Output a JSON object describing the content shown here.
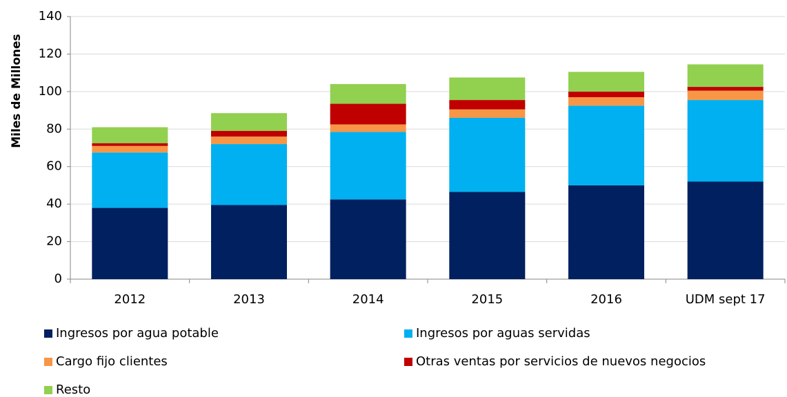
{
  "chart_data": {
    "type": "stacked_bar",
    "y_label": "Miles de Millones",
    "categories": [
      "2012",
      "2013",
      "2014",
      "2015",
      "2016",
      "UDM sept 17"
    ],
    "series": [
      {
        "name": "Ingresos por agua potable",
        "color": "#002060",
        "values": [
          38,
          39.5,
          42.5,
          46.5,
          50,
          52
        ]
      },
      {
        "name": "Ingresos por aguas servidas",
        "color": "#00b0f0",
        "values": [
          29.5,
          32.5,
          36,
          39.5,
          42.5,
          43.5
        ]
      },
      {
        "name": "Cargo fijo clientes",
        "color": "#f79646",
        "values": [
          3.5,
          4,
          4,
          4.5,
          4.5,
          5
        ]
      },
      {
        "name": "Otras ventas por servicios de nuevos negocios",
        "color": "#c00000",
        "values": [
          1.5,
          3,
          11,
          5,
          3,
          2
        ]
      },
      {
        "name": "Resto",
        "color": "#92d050",
        "values": [
          8.5,
          9.5,
          10.5,
          12,
          10.5,
          12
        ]
      }
    ],
    "ylim": [
      0,
      140
    ],
    "yticks": [
      0,
      20,
      40,
      60,
      80,
      100,
      120,
      140
    ],
    "grid": true
  }
}
